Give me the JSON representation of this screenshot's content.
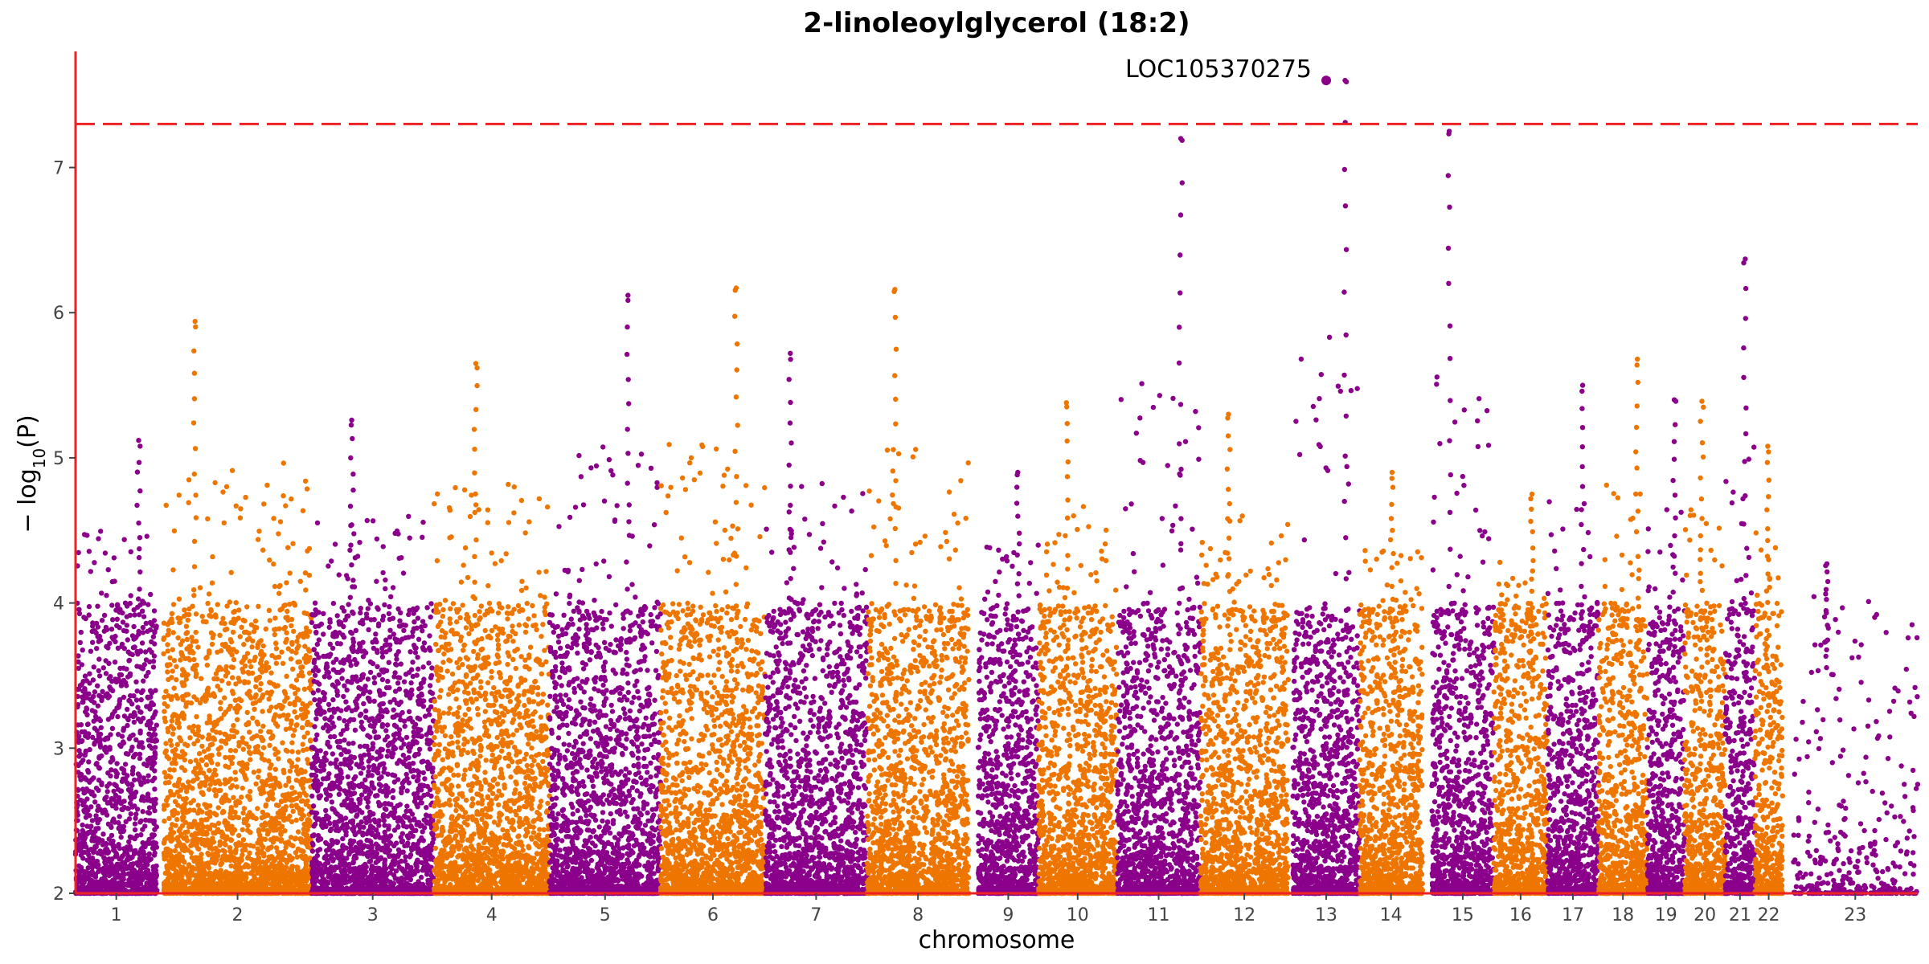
{
  "chart_data": {
    "type": "scatter",
    "title": "2-linoleoylglycerol (18:2)",
    "xlabel": "chromosome",
    "ylabel_main": "− log",
    "ylabel_sub": "10",
    "ylabel_tail": "(P)",
    "ylim": [
      2,
      7.8
    ],
    "y_ticks": [
      "2",
      "3",
      "4",
      "5",
      "6",
      "7"
    ],
    "threshold": 7.3,
    "colors": {
      "odd": "#8b008b",
      "even": "#ee7600",
      "threshold_line": "#ee2222",
      "axis": "#ee2222"
    },
    "chromosomes": [
      {
        "label": "1",
        "bp_start": 0.0,
        "bp_end": 0.88,
        "max_peak": 5.12
      },
      {
        "label": "2",
        "bp_start": 0.95,
        "bp_end": 2.55,
        "max_peak": 5.94
      },
      {
        "label": "3",
        "bp_start": 2.55,
        "bp_end": 3.87,
        "max_peak": 5.26
      },
      {
        "label": "4",
        "bp_start": 3.87,
        "bp_end": 5.12,
        "max_peak": 5.65
      },
      {
        "label": "5",
        "bp_start": 5.12,
        "bp_end": 6.32,
        "max_peak": 6.12
      },
      {
        "label": "6",
        "bp_start": 6.32,
        "bp_end": 7.45,
        "max_peak": 6.17
      },
      {
        "label": "7",
        "bp_start": 7.45,
        "bp_end": 8.55,
        "max_peak": 5.72
      },
      {
        "label": "8",
        "bp_start": 8.55,
        "bp_end": 9.65,
        "max_peak": 6.16
      },
      {
        "label": "9",
        "bp_start": 9.75,
        "bp_end": 10.4,
        "max_peak": 4.9
      },
      {
        "label": "10",
        "bp_start": 10.4,
        "bp_end": 11.25,
        "max_peak": 5.38
      },
      {
        "label": "11",
        "bp_start": 11.25,
        "bp_end": 12.15,
        "max_peak": 7.2
      },
      {
        "label": "12",
        "bp_start": 12.15,
        "bp_end": 13.1,
        "max_peak": 5.3
      },
      {
        "label": "13",
        "bp_start": 13.15,
        "bp_end": 13.87,
        "max_peak": 7.6
      },
      {
        "label": "14",
        "bp_start": 13.87,
        "bp_end": 14.55,
        "max_peak": 4.9
      },
      {
        "label": "15",
        "bp_start": 14.65,
        "bp_end": 15.32,
        "max_peak": 7.25
      },
      {
        "label": "16",
        "bp_start": 15.32,
        "bp_end": 15.9,
        "max_peak": 4.75
      },
      {
        "label": "17",
        "bp_start": 15.9,
        "bp_end": 16.45,
        "max_peak": 5.5
      },
      {
        "label": "18",
        "bp_start": 16.45,
        "bp_end": 16.98,
        "max_peak": 5.68
      },
      {
        "label": "19",
        "bp_start": 16.98,
        "bp_end": 17.38,
        "max_peak": 5.4
      },
      {
        "label": "20",
        "bp_start": 17.38,
        "bp_end": 17.82,
        "max_peak": 5.39
      },
      {
        "label": "21",
        "bp_start": 17.82,
        "bp_end": 18.14,
        "max_peak": 6.37
      },
      {
        "label": "22",
        "bp_start": 18.14,
        "bp_end": 18.44,
        "max_peak": 5.08
      },
      {
        "label": "23",
        "bp_start": 18.55,
        "bp_end": 19.9,
        "max_peak": 4.27
      }
    ],
    "annotations": [
      {
        "label": "LOC105370275",
        "chromosome": "13",
        "y": 7.6
      }
    ]
  }
}
